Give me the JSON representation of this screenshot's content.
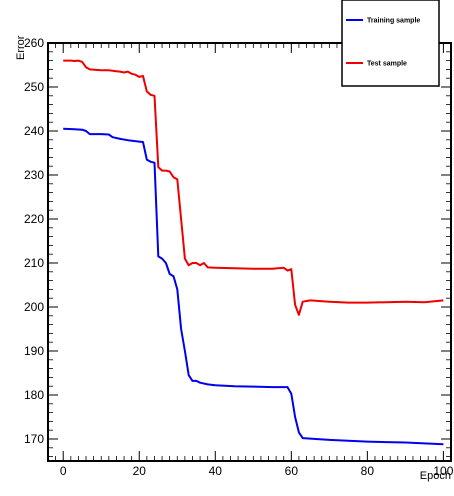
{
  "chart_data": {
    "type": "line",
    "title": "",
    "xlabel": "Epoch",
    "ylabel": "Error",
    "xlim": [
      -4,
      102
    ],
    "ylim": [
      165,
      260
    ],
    "xticks": [
      0,
      20,
      40,
      60,
      80,
      100
    ],
    "yticks": [
      170,
      180,
      190,
      200,
      210,
      220,
      230,
      240,
      250,
      260
    ],
    "grid": false,
    "legend_position": "top-right",
    "series": [
      {
        "name": "Training sample",
        "color": "#0000ee",
        "x": [
          0,
          3,
          5,
          6,
          7,
          10,
          12,
          13,
          15,
          17,
          20,
          21,
          22,
          23,
          24,
          25,
          26,
          27,
          28,
          29,
          30,
          31,
          32,
          33,
          34,
          35,
          36,
          38,
          40,
          45,
          50,
          55,
          59,
          60,
          61,
          62,
          63,
          65,
          70,
          75,
          80,
          85,
          90,
          95,
          100
        ],
        "y": [
          240.5,
          240.4,
          240.3,
          240,
          239.3,
          239.3,
          239.2,
          238.6,
          238.2,
          237.9,
          237.6,
          237.5,
          233.5,
          233,
          232.8,
          211.5,
          211,
          210,
          207.5,
          207,
          204,
          195,
          190,
          184.5,
          183.2,
          183.2,
          182.8,
          182.4,
          182.2,
          182,
          181.9,
          181.8,
          181.8,
          180.3,
          175,
          171.5,
          170.2,
          170.1,
          169.8,
          169.6,
          169.4,
          169.3,
          169.2,
          169,
          168.8
        ]
      },
      {
        "name": "Test sample",
        "color": "#ee0000",
        "x": [
          0,
          2,
          3,
          4,
          5,
          6,
          7,
          10,
          12,
          14,
          15,
          16,
          17,
          18,
          19,
          20,
          21,
          22,
          23,
          24,
          25,
          26,
          27,
          28,
          29,
          30,
          31,
          32,
          33,
          34,
          35,
          36,
          37,
          38,
          40,
          45,
          50,
          55,
          58,
          59,
          60,
          61,
          62,
          63,
          65,
          70,
          75,
          80,
          85,
          90,
          95,
          100
        ],
        "y": [
          256,
          256,
          255.9,
          256,
          255.7,
          254.5,
          254,
          253.8,
          253.8,
          253.6,
          253.5,
          253.3,
          253.5,
          253,
          252.8,
          252.3,
          252.5,
          249,
          248.2,
          248,
          231.8,
          231,
          231,
          230.8,
          229.5,
          229,
          220,
          211,
          209.5,
          210,
          210,
          209.5,
          210,
          209,
          208.9,
          208.8,
          208.7,
          208.7,
          208.9,
          208.3,
          208.6,
          200.5,
          198.2,
          201.2,
          201.5,
          201.2,
          201,
          201,
          201.1,
          201.2,
          201.1,
          201.5
        ]
      }
    ]
  }
}
